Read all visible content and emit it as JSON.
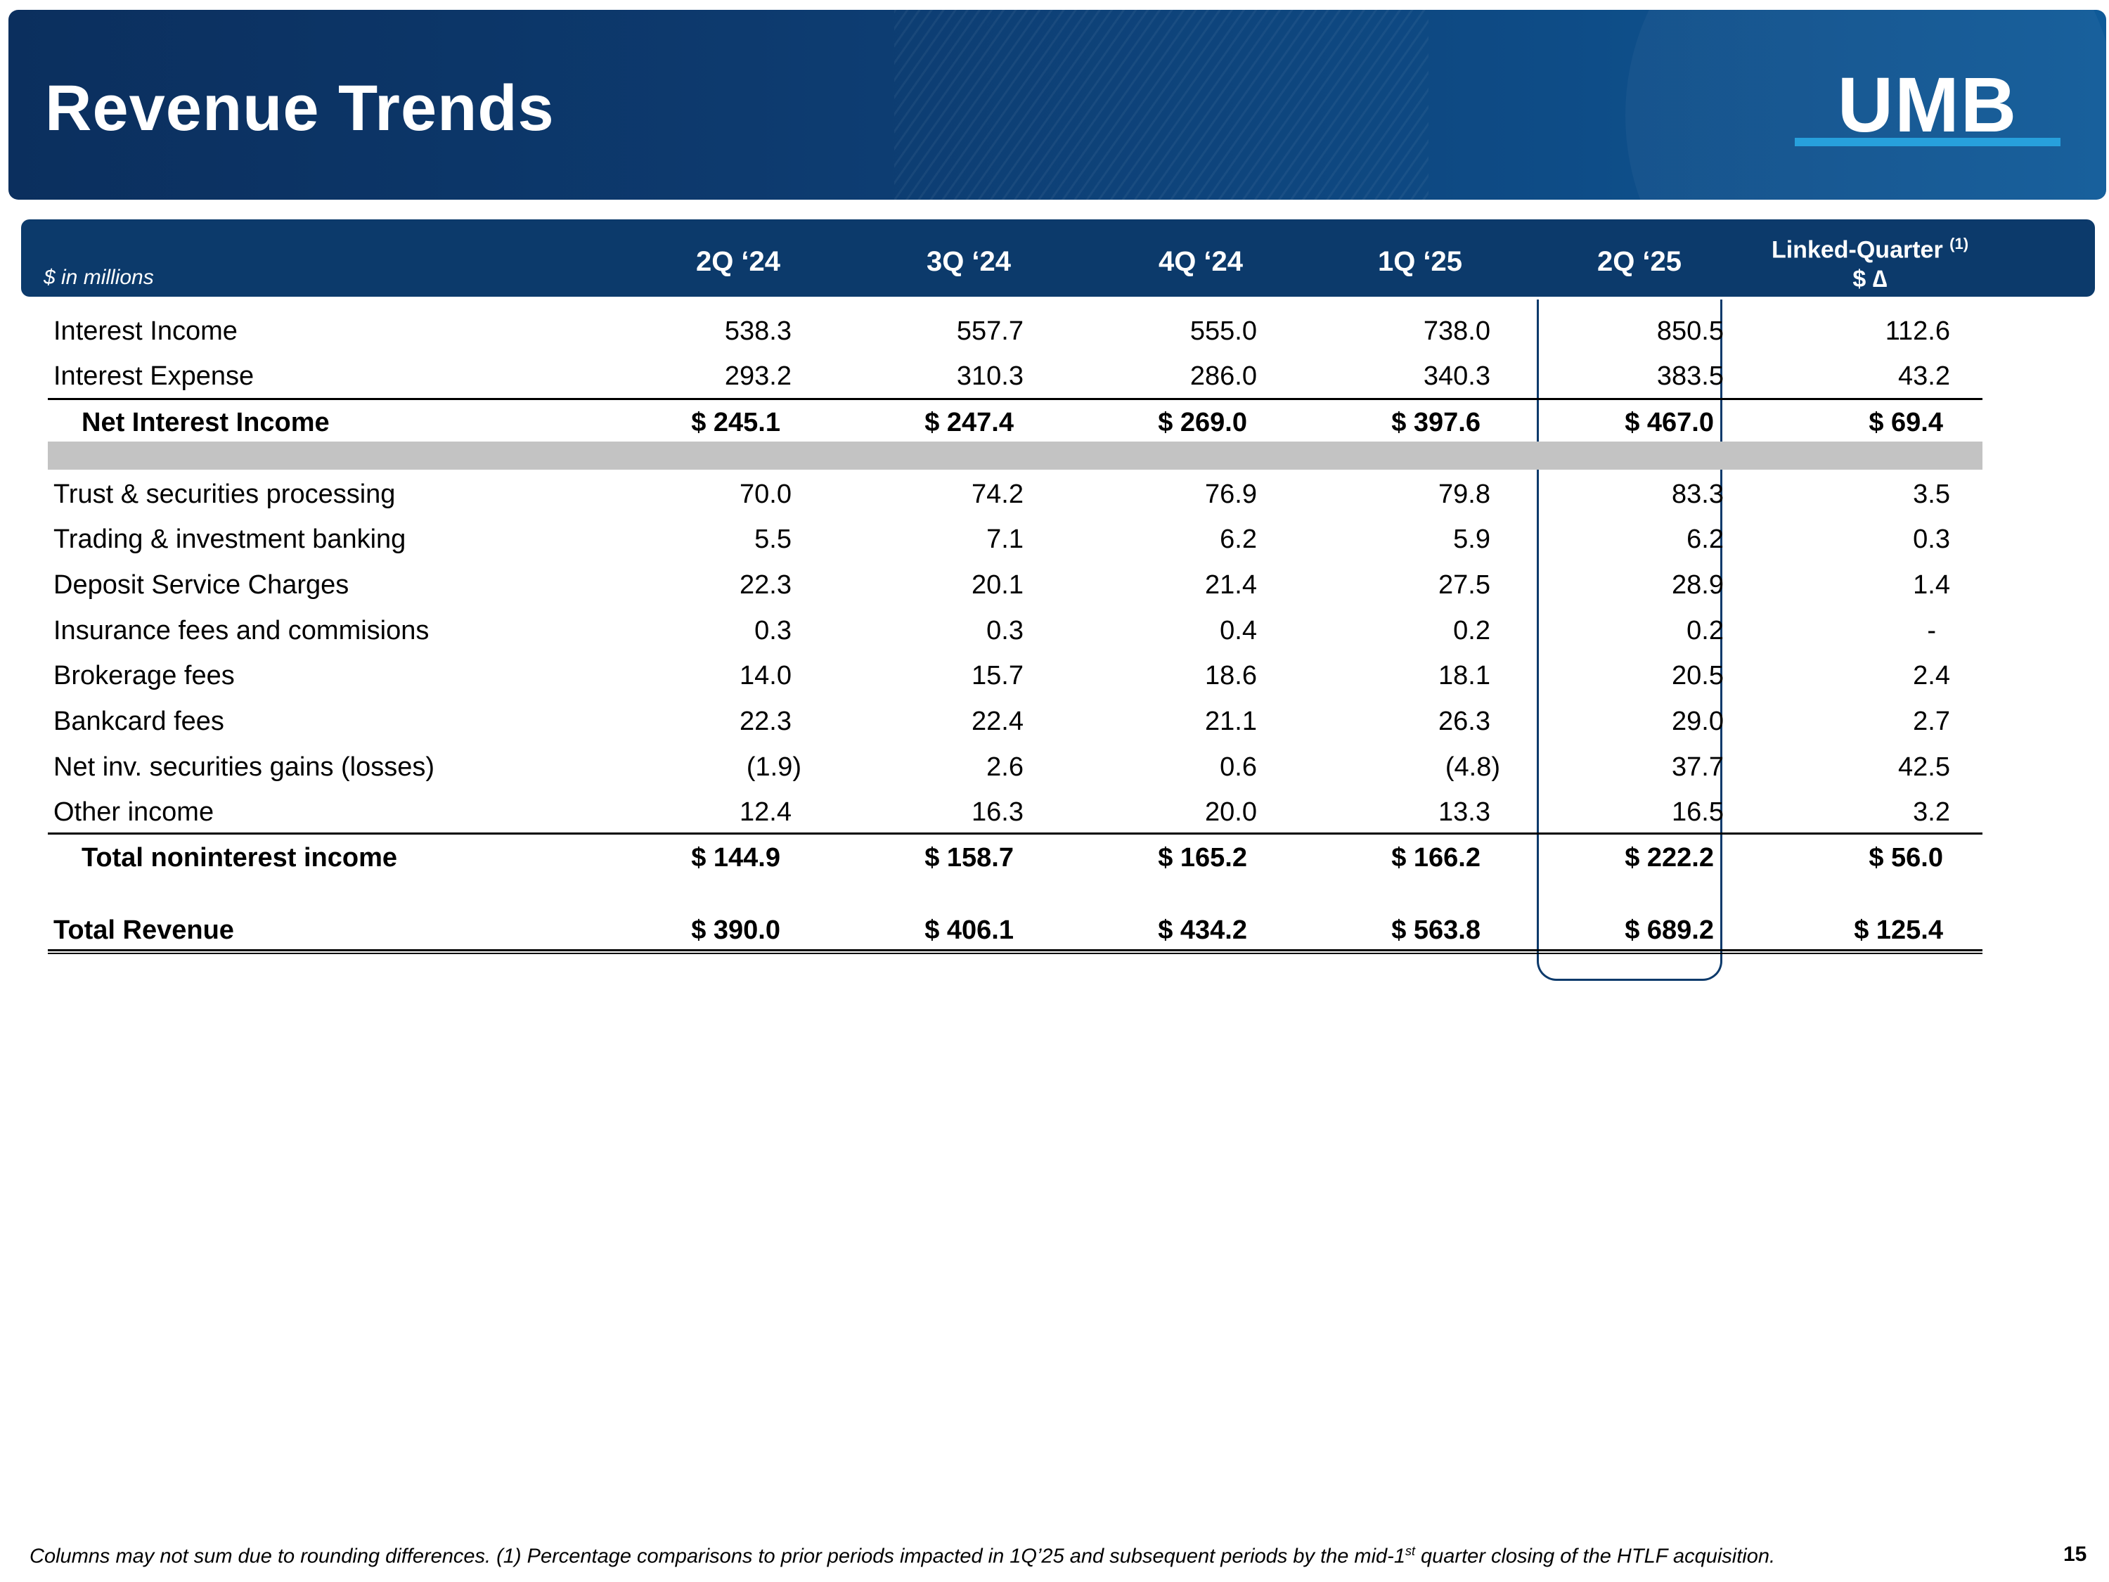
{
  "header": {
    "title": "Revenue Trends",
    "logo_text": "UMB"
  },
  "table": {
    "unit_label": "$ in millions",
    "columns": [
      "2Q ‘24",
      "3Q ‘24",
      "4Q ‘24",
      "1Q ‘25",
      "2Q ‘25"
    ],
    "linked_quarter": {
      "line1": "Linked-Quarter",
      "superscript": "(1)",
      "line2": "$ ∆"
    },
    "rows": [
      {
        "label": "Interest Income",
        "values": [
          "538.3",
          "557.7",
          "555.0",
          "738.0",
          "850.5",
          "112.6"
        ]
      },
      {
        "label": "Interest Expense",
        "values": [
          "293.2",
          "310.3",
          "286.0",
          "340.3",
          "383.5",
          "43.2"
        ]
      },
      {
        "label": "Net Interest Income",
        "values": [
          "$ 245.1",
          "$ 247.4",
          "$ 269.0",
          "$ 397.6",
          "$ 467.0",
          "$ 69.4"
        ]
      },
      {
        "label": "Trust & securities processing",
        "values": [
          "70.0",
          "74.2",
          "76.9",
          "79.8",
          "83.3",
          "3.5"
        ]
      },
      {
        "label": "Trading & investment banking",
        "values": [
          "5.5",
          "7.1",
          "6.2",
          "5.9",
          "6.2",
          "0.3"
        ]
      },
      {
        "label": "Deposit Service Charges",
        "values": [
          "22.3",
          "20.1",
          "21.4",
          "27.5",
          "28.9",
          "1.4"
        ]
      },
      {
        "label": "Insurance fees and commisions",
        "values": [
          "0.3",
          "0.3",
          "0.4",
          "0.2",
          "0.2",
          "-"
        ]
      },
      {
        "label": "Brokerage fees",
        "values": [
          "14.0",
          "15.7",
          "18.6",
          "18.1",
          "20.5",
          "2.4"
        ]
      },
      {
        "label": "Bankcard fees",
        "values": [
          "22.3",
          "22.4",
          "21.1",
          "26.3",
          "29.0",
          "2.7"
        ]
      },
      {
        "label": "Net inv. securities gains (losses)",
        "values": [
          "(1.9)",
          "2.6",
          "0.6",
          "(4.8)",
          "37.7",
          "42.5"
        ]
      },
      {
        "label": "Other income",
        "values": [
          "12.4",
          "16.3",
          "20.0",
          "13.3",
          "16.5",
          "3.2"
        ]
      },
      {
        "label": "Total noninterest income",
        "values": [
          "$ 144.9",
          "$ 158.7",
          "$ 165.2",
          "$ 166.2",
          "$ 222.2",
          "$  56.0"
        ]
      },
      {
        "label": "Total Revenue",
        "values": [
          "$ 390.0",
          "$ 406.1",
          "$ 434.2",
          "$ 563.8",
          "$ 689.2",
          "$ 125.4"
        ]
      }
    ]
  },
  "footer": {
    "note_part1": "Columns may not sum due to rounding differences. (1) Percentage comparisons to prior periods impacted in 1Q’25 and subsequent periods by the mid-1",
    "note_sup": "st",
    "note_part2": " quarter closing of the HTLF acquisition.",
    "page_number": "15"
  }
}
